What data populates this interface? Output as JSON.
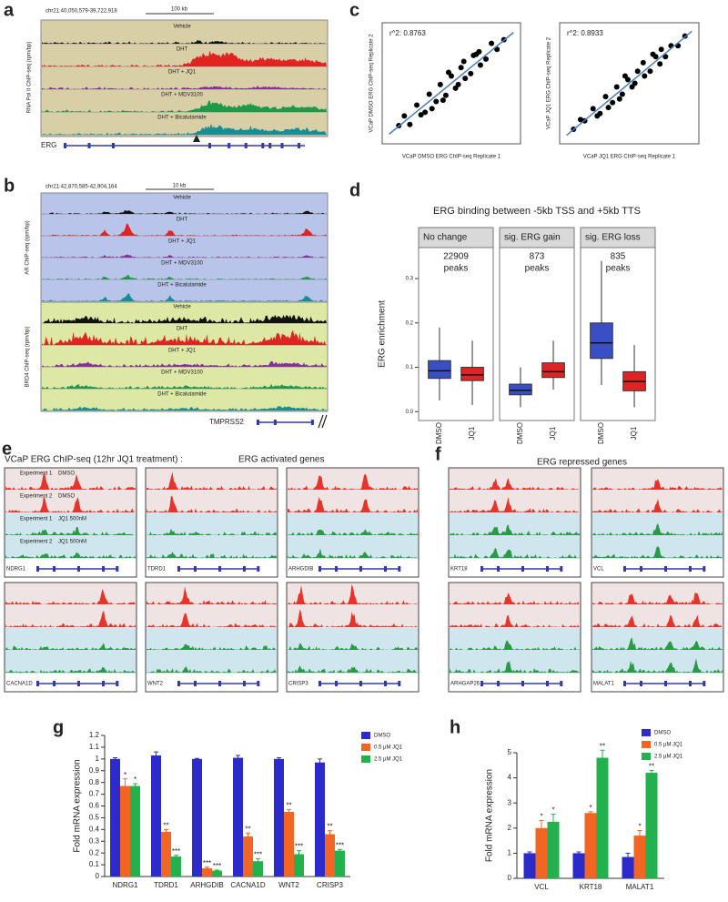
{
  "panel_labels": [
    "a",
    "b",
    "c",
    "d",
    "e",
    "f",
    "g",
    "h"
  ],
  "panel_a": {
    "region": "chr21:40,050,579-39,722,918",
    "scale": "100 kb",
    "y_label": "RNA Pol II ChIP-seq (rpm/bp)",
    "tracks": [
      "Vehicle",
      "DHT",
      "DHT + JQ1",
      "DHT + MDV3100",
      "DHT + Bicalutamide"
    ],
    "gene": "ERG"
  },
  "panel_b": {
    "region": "chr21:42,870,585-42,904,164",
    "scale": "10 kb",
    "ar_label": "AR ChIP-seq (rpm/bp)",
    "brd4_label": "BRD4 ChIP-seq (rpm/bp)",
    "ar_tracks": [
      "Vehicle",
      "DHT",
      "DHT + JQ1",
      "DHT + MDV3100",
      "DHT + Bicalutamide"
    ],
    "brd4_tracks": [
      "Vehicle",
      "DHT",
      "DHT + JQ1",
      "DHT + MDV3100",
      "DHT + Bicalutamide"
    ],
    "gene": "TMPRSS2"
  },
  "panel_e": {
    "title": "VCaP ERG ChIP-seq (12hr JQ1 treatment) :",
    "subtitle": "ERG activated genes",
    "track_labels": [
      [
        "Experiment 1",
        "DMSO"
      ],
      [
        "Experiment 2",
        "DMSO"
      ],
      [
        "Experiment 1",
        "JQ1 500nM"
      ],
      [
        "Experiment 2",
        "JQ1 500nM"
      ]
    ],
    "genes": [
      "NDRG1",
      "TDRD1",
      "ARHGDIB",
      "CACNA1D",
      "WNT2",
      "CRISP3"
    ]
  },
  "panel_f": {
    "subtitle": "ERG repressed genes",
    "genes": [
      "KRT18",
      "VCL",
      "ARHGAP26",
      "MALAT1"
    ]
  },
  "chart_data": [
    {
      "type": "scatter",
      "annotation": "r^2: 0.8763",
      "annotation_color": "#e03020",
      "x_label": "VCaP DMSO ERG ChIP-seq Replicate 1",
      "y_label": "VCaP DMSO ERG ChIP-seq Replicate 2",
      "xlim": [
        0,
        10
      ],
      "ylim": [
        0,
        10
      ],
      "color": "#000000",
      "x": [
        1.2,
        2.0,
        2.5,
        3.1,
        3.4,
        3.9,
        4.2,
        4.6,
        5.0,
        5.3,
        5.7,
        6.0,
        6.4,
        6.8,
        7.1,
        7.5,
        7.9,
        8.3,
        4.8,
        5.5,
        3.6,
        6.6,
        2.8,
        7.0,
        1.6,
        8.8,
        5.9,
        4.4
      ],
      "y": [
        1.5,
        1.6,
        3.2,
        2.6,
        4.1,
        3.5,
        4.9,
        4.0,
        5.6,
        4.6,
        6.3,
        5.4,
        5.8,
        7.4,
        6.5,
        7.0,
        8.3,
        7.8,
        5.9,
        4.9,
        2.9,
        7.3,
        2.4,
        7.6,
        2.3,
        8.6,
        6.8,
        3.6
      ],
      "trend_line": {
        "x": [
          0.5,
          9.5
        ],
        "y": [
          0.8,
          9.2
        ],
        "color": "#4a7fc0"
      }
    },
    {
      "type": "scatter",
      "annotation": "r^2: 0.8933",
      "annotation_color": "#3aaa3a",
      "x_label": "VCaP JQ1 ERG ChIP-seq Replicate 1",
      "y_label": "VCaP JQ1 ERG ChIP-seq Replicate 2",
      "xlim": [
        0,
        10
      ],
      "ylim": [
        0,
        10
      ],
      "color": "#000000",
      "x": [
        1.0,
        1.8,
        2.4,
        2.9,
        3.3,
        3.8,
        4.1,
        4.5,
        4.9,
        5.2,
        5.6,
        6.1,
        6.5,
        6.9,
        7.2,
        7.6,
        8.0,
        8.5,
        4.7,
        5.4,
        3.5,
        6.7,
        2.7,
        7.3,
        1.5,
        9.0,
        6.0,
        4.3
      ],
      "y": [
        1.2,
        1.9,
        2.9,
        2.5,
        3.9,
        3.4,
        4.7,
        4.1,
        5.3,
        4.7,
        6.0,
        5.6,
        6.0,
        7.2,
        6.6,
        7.2,
        8.1,
        8.1,
        5.6,
        5.0,
        3.0,
        7.4,
        2.3,
        7.8,
        2.0,
        8.9,
        6.7,
        3.7
      ],
      "trend_line": {
        "x": [
          0.5,
          9.5
        ],
        "y": [
          0.7,
          9.3
        ],
        "color": "#4a7fc0"
      }
    },
    {
      "type": "box",
      "title": "ERG binding between -5kb TSS and +5kb TTS",
      "y_label": "ERG enrichment",
      "ylim": [
        -0.02,
        0.37
      ],
      "yticks": [
        {
          "value": 0,
          "label": "0.0"
        },
        0.1,
        0.2,
        0.3
      ],
      "categories": [
        "DMSO",
        "JQ1"
      ],
      "colors": [
        "#3b4fc4",
        "#e02424"
      ],
      "facets": [
        {
          "name": "No change",
          "annotation": [
            "22909",
            "peaks"
          ],
          "boxes": [
            {
              "whislo": 0.025,
              "q1": 0.075,
              "med": 0.092,
              "q3": 0.115,
              "whishi": 0.19
            },
            {
              "whislo": 0.015,
              "q1": 0.07,
              "med": 0.083,
              "q3": 0.1,
              "whishi": 0.16
            }
          ]
        },
        {
          "name": "sig. ERG gain",
          "annotation": [
            "873",
            "peaks"
          ],
          "boxes": [
            {
              "whislo": 0.01,
              "q1": 0.038,
              "med": 0.048,
              "q3": 0.062,
              "whishi": 0.1
            },
            {
              "whislo": 0.05,
              "q1": 0.077,
              "med": 0.09,
              "q3": 0.11,
              "whishi": 0.16
            }
          ]
        },
        {
          "name": "sig. ERG loss",
          "annotation": [
            "835",
            "peaks"
          ],
          "boxes": [
            {
              "whislo": 0.06,
              "q1": 0.12,
              "med": 0.155,
              "q3": 0.2,
              "whishi": 0.34
            },
            {
              "whislo": 0.01,
              "q1": 0.047,
              "med": 0.068,
              "q3": 0.09,
              "whishi": 0.15
            }
          ]
        }
      ]
    },
    {
      "type": "bar",
      "y_label": "Fold mRNA expression",
      "ylim": [
        0,
        1.2
      ],
      "yticks": [
        0,
        0.1,
        0.2,
        0.3,
        0.4,
        0.5,
        0.6,
        0.7,
        0.8,
        0.9,
        1,
        1.1,
        1.2
      ],
      "legend": "right",
      "categories": [
        "NDRG1",
        "TDRD1",
        "ARHGDIB",
        "CACNA1D",
        "WNT2",
        "CRISP3"
      ],
      "series": [
        {
          "name": "DMSO",
          "color": "#2b2bcc",
          "values": [
            1,
            1.03,
            1,
            1.01,
            1,
            0.97
          ],
          "errors": [
            0.01,
            0.03,
            0.005,
            0.02,
            0.01,
            0.03
          ]
        },
        {
          "name": "0.5 µM JQ1",
          "color": "#f26522",
          "values": [
            0.77,
            0.38,
            0.07,
            0.34,
            0.55,
            0.36
          ],
          "errors": [
            0.06,
            0.02,
            0.01,
            0.03,
            0.02,
            0.03
          ],
          "significance": [
            "*",
            "**",
            "***",
            "**",
            "**",
            "**"
          ]
        },
        {
          "name": "2.5 µM JQ1",
          "color": "#22b14c",
          "values": [
            0.77,
            0.17,
            0.05,
            0.13,
            0.19,
            0.22
          ],
          "errors": [
            0.02,
            0.01,
            0.005,
            0.02,
            0.03,
            0.01
          ],
          "significance": [
            "*",
            "***",
            "***",
            "***",
            "***",
            "***"
          ]
        }
      ]
    },
    {
      "type": "bar",
      "y_label": "Fold mRNA expression",
      "ylim": [
        0,
        5
      ],
      "yticks": [
        0,
        1,
        2,
        3,
        4,
        5
      ],
      "legend": "upper right",
      "categories": [
        "VCL",
        "KRT18",
        "MALAT1"
      ],
      "series": [
        {
          "name": "DMSO",
          "color": "#2b2bcc",
          "values": [
            1,
            1,
            0.85
          ],
          "errors": [
            0.05,
            0.05,
            0.15
          ]
        },
        {
          "name": "0.5 µM JQ1",
          "color": "#f26522",
          "values": [
            2.0,
            2.6,
            1.7
          ],
          "errors": [
            0.3,
            0.05,
            0.2
          ],
          "significance": [
            "*",
            "*",
            "*"
          ]
        },
        {
          "name": "2.5 µM JQ1",
          "color": "#22b14c",
          "values": [
            2.25,
            4.8,
            4.2
          ],
          "errors": [
            0.3,
            0.3,
            0.1
          ],
          "significance": [
            "*",
            "**",
            "**"
          ]
        }
      ]
    }
  ]
}
